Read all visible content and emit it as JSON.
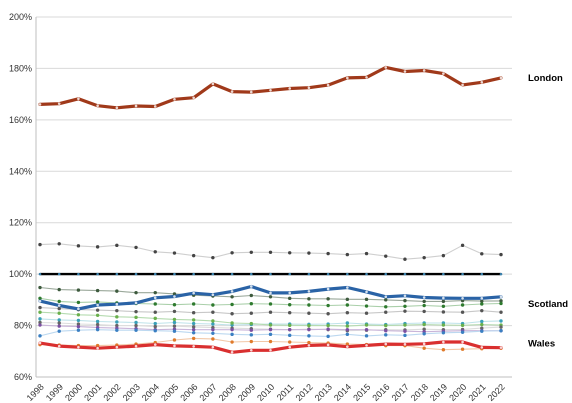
{
  "chart_data": {
    "type": "line",
    "title": "",
    "xlabel": "",
    "ylabel": "",
    "ylim": [
      60,
      200
    ],
    "y_ticks": [
      60,
      80,
      100,
      120,
      140,
      160,
      180,
      200
    ],
    "y_tick_labels": [
      "60%",
      "80%",
      "100%",
      "120%",
      "140%",
      "160%",
      "180%",
      "200%"
    ],
    "x": [
      "1998",
      "1999",
      "2000",
      "2001",
      "2002",
      "2003",
      "2004",
      "2005",
      "2006",
      "2007",
      "2008",
      "2009",
      "2010",
      "2011",
      "2012",
      "2013",
      "2014",
      "2015",
      "2016",
      "2017",
      "2018",
      "2019",
      "2020",
      "2021",
      "2022"
    ],
    "grid": "horizontal",
    "highlighted_series": [
      {
        "name": "London",
        "color": "#a0391a",
        "width": 3.2,
        "values": [
          166,
          166.3,
          168.2,
          165.5,
          164.7,
          165.4,
          165.2,
          168,
          168.6,
          174,
          171,
          170.8,
          171.5,
          172.2,
          172.5,
          173.5,
          176.3,
          176.5,
          180.4,
          178.8,
          179.2,
          178,
          173.6,
          174.6,
          176.3
        ]
      },
      {
        "name": "",
        "color": "#000000",
        "width": 2.4,
        "values": [
          100,
          100,
          100,
          100,
          100,
          100,
          100,
          100,
          100,
          100,
          100,
          100,
          100,
          100,
          100,
          100,
          100,
          100,
          100,
          100,
          100,
          100,
          100,
          100,
          100
        ]
      },
      {
        "name": "Scotland",
        "color": "#2a63a6",
        "width": 3.2,
        "values": [
          89.5,
          87.8,
          86.5,
          88,
          88.3,
          88.8,
          90.8,
          91.3,
          92.6,
          92,
          93.3,
          95.2,
          92.7,
          92.7,
          93.3,
          94.2,
          94.8,
          93.1,
          91.2,
          91.6,
          90.9,
          90.7,
          90.6,
          90.6,
          91.2
        ]
      },
      {
        "name": "Wales",
        "color": "#d92f2f",
        "width": 3.2,
        "values": [
          73.2,
          72,
          71.6,
          71.2,
          71.6,
          72,
          72.6,
          72.1,
          71.9,
          71.6,
          69.6,
          70.4,
          70.4,
          71.6,
          72.3,
          72.5,
          71.8,
          72.3,
          72.8,
          72.7,
          72.9,
          73.6,
          73.6,
          71.5,
          71.4
        ]
      }
    ],
    "other_series": [
      {
        "color": "#cfcfcf",
        "marker": "#444444",
        "values": [
          111.5,
          111.8,
          111,
          110.6,
          111.2,
          110.4,
          108.7,
          108.2,
          107.2,
          106.4,
          108.3,
          108.5,
          108.5,
          108.3,
          108.2,
          108,
          107.6,
          108,
          107,
          105.8,
          106.4,
          107.2,
          111.2,
          107.9,
          107.6
        ]
      },
      {
        "color": "#9aa89a",
        "marker": "#3d5a3d",
        "values": [
          94.8,
          94,
          93.8,
          93.6,
          93.4,
          92.8,
          92.8,
          92.3,
          91.8,
          91.5,
          91.2,
          91.7,
          91.2,
          90.6,
          90.4,
          90.4,
          90.2,
          90.2,
          90,
          89.7,
          89.4,
          89.4,
          89.7,
          89.5,
          89.6
        ]
      },
      {
        "color": "#a9cfa9",
        "marker": "#2e7a2e",
        "values": [
          90.6,
          89.4,
          89,
          89.2,
          88.8,
          88.6,
          88.4,
          88.1,
          88.4,
          88,
          88.2,
          88.5,
          88.4,
          88.1,
          88,
          87.8,
          88,
          87.6,
          87.3,
          87.5,
          87.8,
          87.5,
          88,
          88.4,
          88.6
        ]
      },
      {
        "color": "#c8c8c8",
        "marker": "#555555",
        "values": [
          87,
          86.6,
          86.2,
          86,
          85.8,
          85.4,
          85.2,
          85.5,
          85,
          85.2,
          84.6,
          84.8,
          85.2,
          85,
          84.8,
          84.6,
          85,
          84.8,
          85.2,
          85.6,
          85.5,
          85.3,
          85.2,
          85.8,
          85.2
        ]
      },
      {
        "color": "#bfe3ea",
        "marker": "#3aa0b8",
        "values": [
          82.6,
          82.2,
          82,
          81.6,
          81.4,
          81.2,
          80.8,
          81.2,
          80.8,
          80.6,
          80.2,
          80.4,
          80.6,
          80.6,
          80.5,
          80.6,
          81,
          80.6,
          80.4,
          80.8,
          81,
          81,
          80.8,
          81.6,
          81.8
        ]
      },
      {
        "color": "#b5dbb0",
        "marker": "#6ab04c",
        "values": [
          85.2,
          84.8,
          84.2,
          84,
          83.4,
          83.2,
          82.8,
          82.4,
          82.2,
          81.8,
          81,
          80.8,
          80.2,
          80.1,
          80,
          80,
          79.8,
          80.2,
          80,
          80.2,
          80.4,
          80.2,
          80.1,
          80.4,
          80.2
        ]
      },
      {
        "color": "#dddddd",
        "marker": "#666666",
        "values": [
          81.2,
          81,
          80.6,
          80.4,
          80,
          80,
          79.6,
          79.8,
          79.5,
          79.2,
          79,
          78.8,
          78.6,
          78.4,
          78.6,
          78.4,
          78,
          78.2,
          78.4,
          78.3,
          78.6,
          78.4,
          78.5,
          79,
          79.4
        ]
      },
      {
        "color": "#c9b5d9",
        "marker": "#7b4fa0",
        "values": [
          80.2,
          79.8,
          79.6,
          79.2,
          79,
          78.8,
          78.4,
          78.6,
          78.4,
          78.4,
          78.4,
          78.2,
          78.4,
          78.4,
          78.4,
          78.6,
          78.4,
          78.4,
          78,
          77.8,
          77.6,
          77.8,
          78,
          78,
          78
        ]
      },
      {
        "color": "#bcd8f0",
        "marker": "#3a7fc2",
        "values": [
          76,
          77.8,
          78.2,
          78.4,
          78.2,
          78.2,
          78,
          77.8,
          77.2,
          77,
          76.6,
          76.4,
          76.6,
          76.2,
          76,
          75.8,
          76.6,
          76,
          76.4,
          76.2,
          76.8,
          77.2,
          77.4,
          77.8,
          78
        ]
      },
      {
        "color": "#f2c8a8",
        "marker": "#e07a2a",
        "values": [
          72.6,
          72.4,
          72.2,
          72.2,
          72.4,
          72.8,
          73.4,
          74.4,
          75,
          74.8,
          73.6,
          73.8,
          73.8,
          73.6,
          73.4,
          73.2,
          72.8,
          72.6,
          72.2,
          72.2,
          71.2,
          70.6,
          70.8,
          71,
          71.2
        ]
      }
    ]
  }
}
